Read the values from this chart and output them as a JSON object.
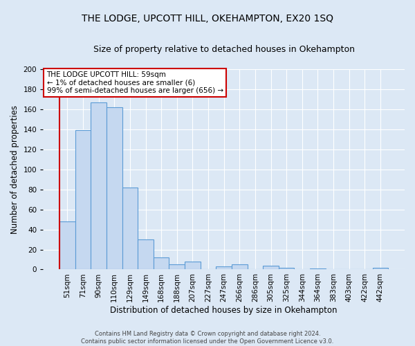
{
  "title": "THE LODGE, UPCOTT HILL, OKEHAMPTON, EX20 1SQ",
  "subtitle": "Size of property relative to detached houses in Okehampton",
  "xlabel": "Distribution of detached houses by size in Okehampton",
  "ylabel": "Number of detached properties",
  "bar_labels": [
    "51sqm",
    "71sqm",
    "90sqm",
    "110sqm",
    "129sqm",
    "149sqm",
    "168sqm",
    "188sqm",
    "207sqm",
    "227sqm",
    "247sqm",
    "266sqm",
    "286sqm",
    "305sqm",
    "325sqm",
    "344sqm",
    "364sqm",
    "383sqm",
    "403sqm",
    "422sqm",
    "442sqm"
  ],
  "bar_values": [
    48,
    139,
    167,
    162,
    82,
    30,
    12,
    5,
    8,
    0,
    3,
    5,
    0,
    4,
    2,
    0,
    1,
    0,
    0,
    0,
    2
  ],
  "bar_color": "#c5d8f0",
  "bar_edge_color": "#5b9bd5",
  "highlight_edge_color": "#cc0000",
  "annotation_box_text": "THE LODGE UPCOTT HILL: 59sqm\n← 1% of detached houses are smaller (6)\n99% of semi-detached houses are larger (656) →",
  "ylim": [
    0,
    200
  ],
  "yticks": [
    0,
    20,
    40,
    60,
    80,
    100,
    120,
    140,
    160,
    180,
    200
  ],
  "background_color": "#dce8f5",
  "plot_background_color": "#dce8f5",
  "footer_line1": "Contains HM Land Registry data © Crown copyright and database right 2024.",
  "footer_line2": "Contains public sector information licensed under the Open Government Licence v3.0.",
  "title_fontsize": 10,
  "subtitle_fontsize": 9,
  "axis_label_fontsize": 8.5,
  "tick_fontsize": 7.5,
  "annotation_fontsize": 7.5,
  "footer_fontsize": 6
}
